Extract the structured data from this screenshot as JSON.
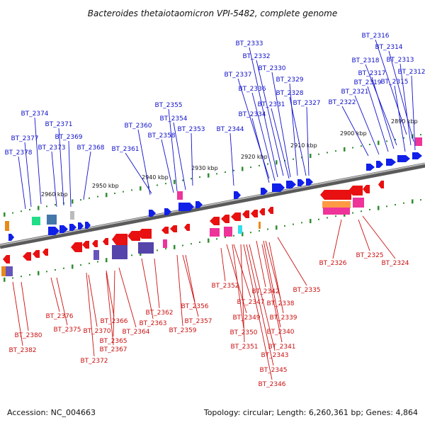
{
  "header": {
    "title": "Bacteroides thetaiotaomicron VPI-5482, complete genome"
  },
  "footer": {
    "accession": "Accession: NC_004663",
    "summary": "Topology: circular; Length: 6,260,361 bp; Genes: 4,864"
  },
  "colors": {
    "forward_label": "#1010cc",
    "reverse_label": "#cc1010",
    "forward_arrow": "#1020e8",
    "reverse_arrow": "#e81010",
    "backbone": "#8a8a8a",
    "tick_major": "#2f8f2f",
    "tick_minor": "#2f8f2f"
  },
  "kbp_labels": [
    "2890 kbp",
    "2900 kbp",
    "2910 kbp",
    "2920 kbp",
    "2930 kbp",
    "2940 kbp",
    "2950 kbp",
    "2960 kbp"
  ],
  "genes_forward": [
    "BT_2316",
    "BT_2314",
    "BT_2318",
    "BT_2313",
    "BT_2317",
    "BT_2312",
    "BT_2319",
    "BT_2315",
    "BT_2321",
    "BT_2322",
    "BT_2333",
    "BT_2332",
    "BT_2330",
    "BT_2337",
    "BT_2329",
    "BT_2336",
    "BT_2328",
    "BT_2331",
    "BT_2327",
    "BT_2334",
    "BT_2355",
    "BT_2354",
    "BT_2360",
    "BT_2358",
    "BT_2353",
    "BT_2344",
    "BT_2361",
    "BT_2374",
    "BT_2371",
    "BT_2377",
    "BT_2369",
    "BT_2373",
    "BT_2368",
    "BT_2378"
  ],
  "genes_reverse": [
    "BT_2326",
    "BT_2325",
    "BT_2324",
    "BT_2335",
    "BT_2352",
    "BT_2342",
    "BT_2347",
    "BT_2338",
    "BT_2349",
    "BT_2339",
    "BT_2350",
    "BT_2340",
    "BT_2351",
    "BT_2341",
    "BT_2343",
    "BT_2345",
    "BT_2346",
    "BT_2356",
    "BT_2362",
    "BT_2357",
    "BT_2363",
    "BT_2359",
    "BT_2366",
    "BT_2364",
    "BT_2365",
    "BT_2367",
    "BT_2370",
    "BT_2372",
    "BT_2376",
    "BT_2375",
    "BT_2380",
    "BT_2382"
  ]
}
